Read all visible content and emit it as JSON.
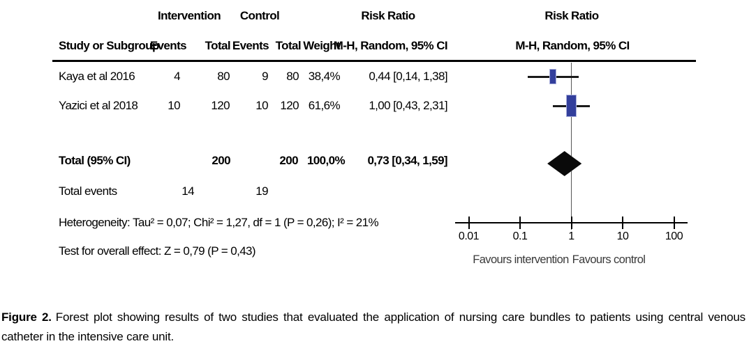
{
  "figure": {
    "caption_label": "Figure 2.",
    "caption_text": "Forest plot showing results of two studies that evaluated the application of nursing care bundles to patients using central venous catheter in the intensive care unit."
  },
  "table": {
    "group_headers": {
      "intervention": "Intervention",
      "control": "Control",
      "risk_ratio_left": "Risk Ratio",
      "risk_ratio_right": "Risk Ratio"
    },
    "column_headers": {
      "study": "Study or Subgroup",
      "events_intervention": "Events",
      "total_intervention": "Total",
      "events_control": "Events",
      "total_control": "Total",
      "weight": "Weight",
      "mh_ci_left": "M-H, Random, 95% CI",
      "mh_ci_right": "M-H, Random, 95% CI"
    },
    "rows": [
      {
        "study": "Kaya et al 2016",
        "events_intervention": "4",
        "total_intervention": "80",
        "events_control": "9",
        "total_control": "80",
        "weight": "38,4%",
        "ci": "0,44 [0,14, 1,38]"
      },
      {
        "study": "Yazici et al 2018",
        "events_intervention": "10",
        "total_intervention": "120",
        "events_control": "10",
        "total_control": "120",
        "weight": "61,6%",
        "ci": "1,00 [0,43, 2,31]"
      }
    ],
    "total_row": {
      "label": "Total (95% CI)",
      "total_intervention": "200",
      "total_control": "200",
      "weight": "100,0%",
      "ci": "0,73 [0,34, 1,59]"
    },
    "total_events_row": {
      "label": "Total events",
      "events_intervention": "14",
      "events_control": "19"
    },
    "heterogeneity": "Heterogeneity: Tau² = 0,07; Chi² = 1,27, df = 1 (P = 0,26); I² = 21%",
    "overall_effect": "Test for overall effect: Z = 0,79 (P = 0,43)"
  },
  "plot": {
    "tick_labels": [
      "0.01",
      "0.1",
      "1",
      "10",
      "100"
    ],
    "favours_left": "Favours intervention",
    "favours_right": "Favours control"
  },
  "colors": {
    "marker_blue": "#333f9c",
    "diamond_black": "#0a0a0a",
    "ci_line": "#1a1a1a",
    "axis": "#000000",
    "ref_line": "#555555"
  },
  "chart_data": {
    "type": "scatter",
    "subtype": "forest-plot",
    "effect_measure": "Risk Ratio, M-H, Random, 95% CI",
    "x_scale": "log",
    "x_range": [
      0.01,
      100
    ],
    "x_ticks": [
      0.01,
      0.1,
      1,
      10,
      100
    ],
    "legend_position": "none",
    "grid": false,
    "studies": [
      {
        "name": "Kaya et al 2016",
        "events_intervention": 4,
        "total_intervention": 80,
        "events_control": 9,
        "total_control": 80,
        "weight_pct": 38.4,
        "rr": 0.44,
        "ci_low": 0.14,
        "ci_high": 1.38
      },
      {
        "name": "Yazici et al 2018",
        "events_intervention": 10,
        "total_intervention": 120,
        "events_control": 10,
        "total_control": 120,
        "weight_pct": 61.6,
        "rr": 1.0,
        "ci_low": 0.43,
        "ci_high": 2.31
      }
    ],
    "total": {
      "label": "Total (95% CI)",
      "total_intervention": 200,
      "total_control": 200,
      "weight_pct": 100.0,
      "rr": 0.73,
      "ci_low": 0.34,
      "ci_high": 1.59,
      "total_events_intervention": 14,
      "total_events_control": 19
    },
    "heterogeneity": "Tau² = 0,07; Chi² = 1,27, df = 1 (P = 0,26); I² = 21%",
    "test_overall_effect": "Z = 0,79 (P = 0,43)",
    "axis_direction_labels": [
      "Favours intervention",
      "Favours control"
    ]
  }
}
